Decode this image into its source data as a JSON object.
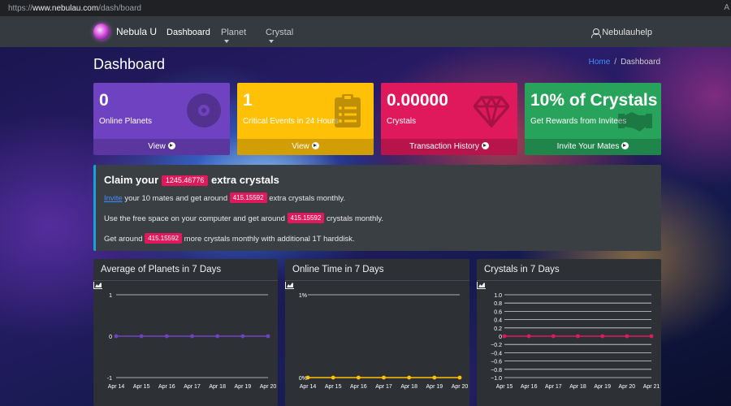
{
  "browser": {
    "url_prefix": "https://",
    "url_host": "www.nebulau.com",
    "url_path": "/dash/board",
    "reader_label": "A"
  },
  "navbar": {
    "brand": "Nebula U",
    "items": [
      {
        "label": "Dashboard",
        "active": true,
        "dropdown": false
      },
      {
        "label": "Planet",
        "active": false,
        "dropdown": true
      },
      {
        "label": "Crystal",
        "active": false,
        "dropdown": true
      }
    ],
    "user": "Nebulauhelp"
  },
  "page": {
    "title": "Dashboard",
    "breadcrumb": {
      "home": "Home",
      "current": "Dashboard"
    }
  },
  "cards": [
    {
      "value": "0",
      "label": "Online Planets",
      "action": "View",
      "color": "#6f42c1",
      "icon": "disc-icon"
    },
    {
      "value": "1",
      "label": "Critical Events in 24 Hours",
      "action": "View",
      "color": "#ffc107",
      "icon": "clipboard-icon"
    },
    {
      "value": "0.00000",
      "label": "Crystals",
      "action": "Transaction History",
      "color": "#e0195d",
      "icon": "gem-icon"
    },
    {
      "value": "10% of Crystals",
      "label": "Get Rewards from Invitees",
      "action": "Invite Your Mates",
      "color": "#28a35b",
      "icon": "handshake-icon"
    }
  ],
  "callout": {
    "title_pre": "Claim your",
    "title_amount": "1245.46776",
    "title_post": "extra crystals",
    "line1": {
      "link": "Invite",
      "pre": "your 10 mates and get around",
      "amount": "415.15592",
      "post": "extra crystals monthly."
    },
    "line2": {
      "pre": "Use the free space on your computer and get around",
      "amount": "415.15592",
      "post": "crystals monthly."
    },
    "line3": {
      "pre": "Get around",
      "amount": "415.15592",
      "post": "more crystals monthly with additional 1T harddisk."
    }
  },
  "chart_data": [
    {
      "type": "line",
      "title": "Average of Planets in 7 Days",
      "categories": [
        "Apr 14",
        "Apr 15",
        "Apr 16",
        "Apr 17",
        "Apr 18",
        "Apr 19",
        "Apr 20"
      ],
      "series": [
        {
          "values": [
            0,
            0,
            0,
            0,
            0,
            0,
            0
          ],
          "color": "#6f42c1"
        }
      ],
      "yticks": [
        "1",
        "0",
        "-1"
      ],
      "ylim": [
        -1,
        1
      ],
      "grid": true
    },
    {
      "type": "line",
      "title": "Online Time in 7 Days",
      "categories": [
        "Apr 14",
        "Apr 15",
        "Apr 16",
        "Apr 17",
        "Apr 18",
        "Apr 19",
        "Apr 20"
      ],
      "series": [
        {
          "values": [
            0,
            0,
            0,
            0,
            0,
            0,
            0
          ],
          "color": "#ffc107"
        }
      ],
      "yticks": [
        "1%",
        "0%"
      ],
      "ylim": [
        0,
        1
      ],
      "grid": true
    },
    {
      "type": "line",
      "title": "Crystals in 7 Days",
      "categories": [
        "Apr 15",
        "Apr 16",
        "Apr 17",
        "Apr 18",
        "Apr 19",
        "Apr 20",
        "Apr 21"
      ],
      "series": [
        {
          "values": [
            0,
            0,
            0,
            0,
            0,
            0,
            0
          ],
          "color": "#e0195d"
        }
      ],
      "yticks": [
        "1.0",
        "0.8",
        "0.6",
        "0.4",
        "0.2",
        "0",
        "−0.2",
        "−0.4",
        "−0.6",
        "−0.8",
        "−1.0"
      ],
      "ylim": [
        -1,
        1
      ],
      "grid": true
    }
  ]
}
